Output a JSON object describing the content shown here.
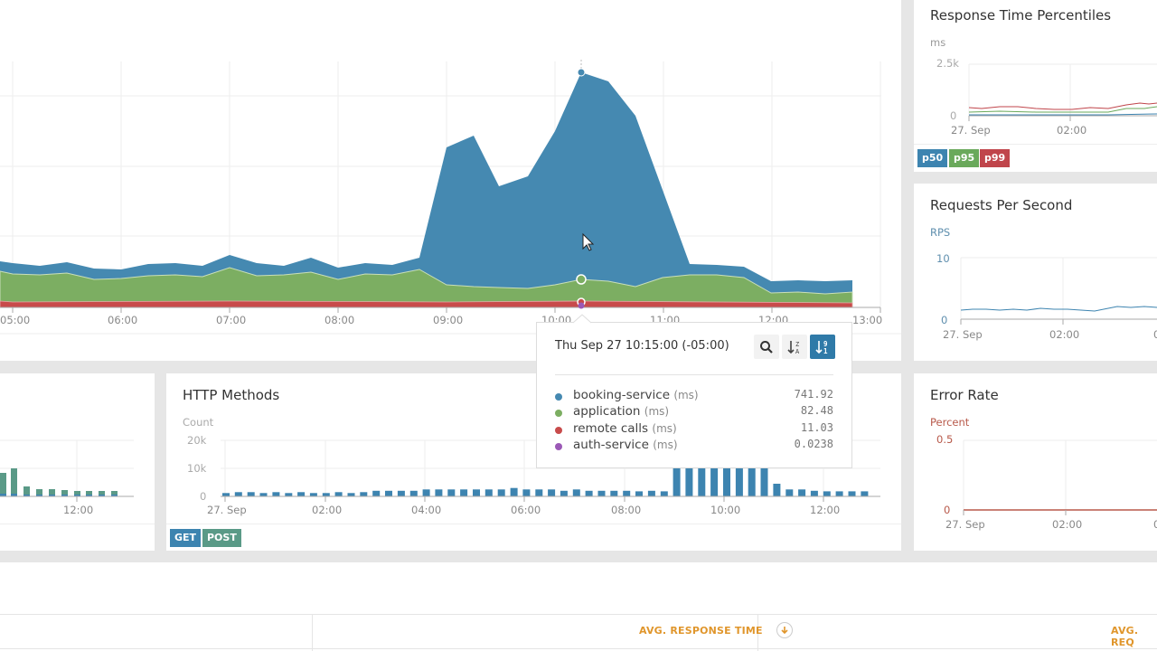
{
  "main_chart": {
    "x_ticks": [
      "05:00",
      "06:00",
      "07:00",
      "08:00",
      "09:00",
      "10:00",
      "11:00",
      "12:00",
      "13:00"
    ],
    "series_colors": {
      "booking-service": "#4589b1",
      "application": "#7cae62",
      "remote calls": "#c84b4b",
      "auth-service": "#9b59b6"
    }
  },
  "tooltip": {
    "timestamp": "Thu Sep 27 10:15:00 (-05:00)",
    "buttons": [
      {
        "name": "search-icon",
        "label": "search"
      },
      {
        "name": "sort-alpha-icon",
        "label": "sort Z-A"
      },
      {
        "name": "sort-numeric-icon",
        "label": "sort 9-1",
        "active": true
      }
    ],
    "rows": [
      {
        "name": "booking-service",
        "unit": "(ms)",
        "value": "741.92",
        "color": "#4589b1"
      },
      {
        "name": "application",
        "unit": "(ms)",
        "value": "82.48",
        "color": "#7cae62"
      },
      {
        "name": "remote calls",
        "unit": "(ms)",
        "value": "11.03",
        "color": "#c84b4b"
      },
      {
        "name": "auth-service",
        "unit": "(ms)",
        "value": "0.0238",
        "color": "#9b59b6"
      }
    ]
  },
  "percentiles": {
    "title": "Response Time Percentiles",
    "y_label": "ms",
    "y_ticks": [
      "2.5k",
      "0"
    ],
    "x_ticks": [
      "27. Sep",
      "02:00"
    ],
    "legend": [
      {
        "label": "p50",
        "color": "#3d84b0"
      },
      {
        "label": "p95",
        "color": "#6aa95b"
      },
      {
        "label": "p99",
        "color": "#c0454b"
      }
    ]
  },
  "rps": {
    "title": "Requests Per Second",
    "y_label": "RPS",
    "y_ticks": [
      "10",
      "0"
    ],
    "x_ticks": [
      "27. Sep",
      "02:00",
      "0"
    ]
  },
  "http_methods": {
    "title": "HTTP Methods",
    "y_label": "Count",
    "y_ticks": [
      "20k",
      "10k",
      "0"
    ],
    "x_ticks": [
      "27. Sep",
      "02:00",
      "04:00",
      "06:00",
      "08:00",
      "10:00",
      "12:00"
    ],
    "legend": [
      {
        "label": "GET",
        "color": "#3d84b0"
      },
      {
        "label": "POST",
        "color": "#5a9a87"
      }
    ]
  },
  "left_panel": {
    "x_ticks": [
      "12:00"
    ]
  },
  "error_rate": {
    "title": "Error Rate",
    "y_label": "Percent",
    "y_ticks": [
      "0.5",
      "0"
    ],
    "x_ticks": [
      "27. Sep",
      "02:00",
      "0"
    ]
  },
  "table_header": {
    "col_avg_response": "AVG. RESPONSE TIME",
    "col_avg_req": "AVG. REQ"
  },
  "chart_data": [
    {
      "type": "area",
      "title": "",
      "stacked": true,
      "x": [
        "04:45",
        "05:00",
        "05:15",
        "05:30",
        "05:45",
        "06:00",
        "06:15",
        "06:30",
        "06:45",
        "07:00",
        "07:15",
        "07:30",
        "07:45",
        "08:00",
        "08:15",
        "08:30",
        "08:45",
        "09:00",
        "09:15",
        "09:30",
        "09:45",
        "10:00",
        "10:15",
        "10:30",
        "10:45",
        "11:00",
        "11:15",
        "11:30",
        "11:45",
        "12:00",
        "12:15",
        "12:30",
        "12:45"
      ],
      "series": [
        {
          "name": "booking-service (ms)",
          "values": [
            40,
            40,
            35,
            40,
            35,
            35,
            40,
            40,
            40,
            45,
            40,
            35,
            40,
            35,
            35,
            40,
            35,
            610,
            590,
            420,
            430,
            570,
            741.92,
            690,
            530,
            300,
            90,
            90,
            85,
            65,
            75,
            70,
            70
          ]
        },
        {
          "name": "application (ms)",
          "values": [
            90,
            85,
            85,
            85,
            75,
            75,
            80,
            80,
            75,
            100,
            80,
            80,
            85,
            80,
            85,
            80,
            100,
            50,
            45,
            40,
            45,
            60,
            82.48,
            75,
            60,
            70,
            75,
            75,
            70,
            35,
            35,
            30,
            40
          ]
        },
        {
          "name": "remote calls (ms)",
          "values": [
            11,
            11,
            11,
            11,
            11,
            11,
            11,
            11,
            11,
            11,
            11,
            11,
            11,
            11,
            11,
            11,
            11,
            11,
            11,
            11,
            11,
            11,
            11.03,
            11,
            11,
            11,
            11,
            11,
            11,
            11,
            11,
            11,
            11
          ]
        },
        {
          "name": "auth-service (ms)",
          "values": [
            0.02,
            0.02,
            0.02,
            0.02,
            0.02,
            0.02,
            0.02,
            0.02,
            0.02,
            0.02,
            0.02,
            0.02,
            0.02,
            0.02,
            0.02,
            0.02,
            0.02,
            0.02,
            0.02,
            0.02,
            0.02,
            0.02,
            0.0238,
            0.02,
            0.02,
            0.02,
            0.02,
            0.02,
            0.02,
            0.02,
            0.02,
            0.02,
            0.02
          ]
        }
      ],
      "xlabel": "",
      "ylabel": "ms",
      "grid": true
    },
    {
      "type": "line",
      "title": "Response Time Percentiles",
      "x": [
        "27. Sep",
        "01:00",
        "02:00",
        "03:00"
      ],
      "series": [
        {
          "name": "p50",
          "values": [
            60,
            60,
            60,
            70
          ]
        },
        {
          "name": "p95",
          "values": [
            200,
            180,
            190,
            350
          ]
        },
        {
          "name": "p99",
          "values": [
            350,
            320,
            330,
            550
          ]
        }
      ],
      "ylabel": "ms",
      "ylim": [
        0,
        2500
      ]
    },
    {
      "type": "line",
      "title": "Requests Per Second",
      "x": [
        "27. Sep",
        "01:00",
        "02:00",
        "03:00"
      ],
      "series": [
        {
          "name": "RPS",
          "values": [
            1.5,
            1.6,
            1.3,
            2.2
          ]
        }
      ],
      "ylabel": "RPS",
      "ylim": [
        0,
        10
      ]
    },
    {
      "type": "bar",
      "title": "HTTP Methods",
      "categories": [
        "00:00",
        "00:15",
        "00:30",
        "00:45",
        "01:00",
        "01:15",
        "01:30",
        "01:45",
        "02:00",
        "02:15",
        "02:30",
        "02:45",
        "03:00",
        "03:15",
        "03:30",
        "03:45",
        "04:00",
        "04:15",
        "04:30",
        "04:45",
        "05:00",
        "05:15",
        "05:30",
        "05:45",
        "06:00",
        "06:15",
        "06:30",
        "06:45",
        "07:00",
        "07:15",
        "07:30",
        "07:45",
        "08:00",
        "08:15",
        "08:30",
        "08:45",
        "09:00",
        "09:15",
        "09:30",
        "09:45",
        "10:00",
        "10:15",
        "10:30",
        "10:45",
        "11:00",
        "11:15",
        "11:30",
        "11:45",
        "12:00",
        "12:15",
        "12:30",
        "12:45"
      ],
      "series": [
        {
          "name": "GET",
          "values": [
            1200,
            1500,
            1500,
            1200,
            1500,
            1200,
            1500,
            1200,
            1200,
            1500,
            1200,
            1500,
            2000,
            2000,
            2000,
            2000,
            2500,
            2500,
            2500,
            2500,
            2500,
            2500,
            2500,
            3000,
            2500,
            2500,
            2500,
            2000,
            2500,
            2000,
            2000,
            2000,
            2000,
            1800,
            2000,
            1800,
            11000,
            10000,
            10500,
            10000,
            10500,
            11500,
            10500,
            12500,
            4500,
            2500,
            2500,
            2000,
            1800,
            1800,
            1800,
            1800
          ]
        }
      ],
      "ylabel": "Count",
      "ylim": [
        0,
        20000
      ]
    },
    {
      "type": "line",
      "title": "Error Rate",
      "x": [
        "27. Sep",
        "02:00"
      ],
      "series": [
        {
          "name": "Percent",
          "values": [
            0,
            0
          ]
        }
      ],
      "ylabel": "Percent",
      "ylim": [
        0,
        0.5
      ]
    }
  ]
}
